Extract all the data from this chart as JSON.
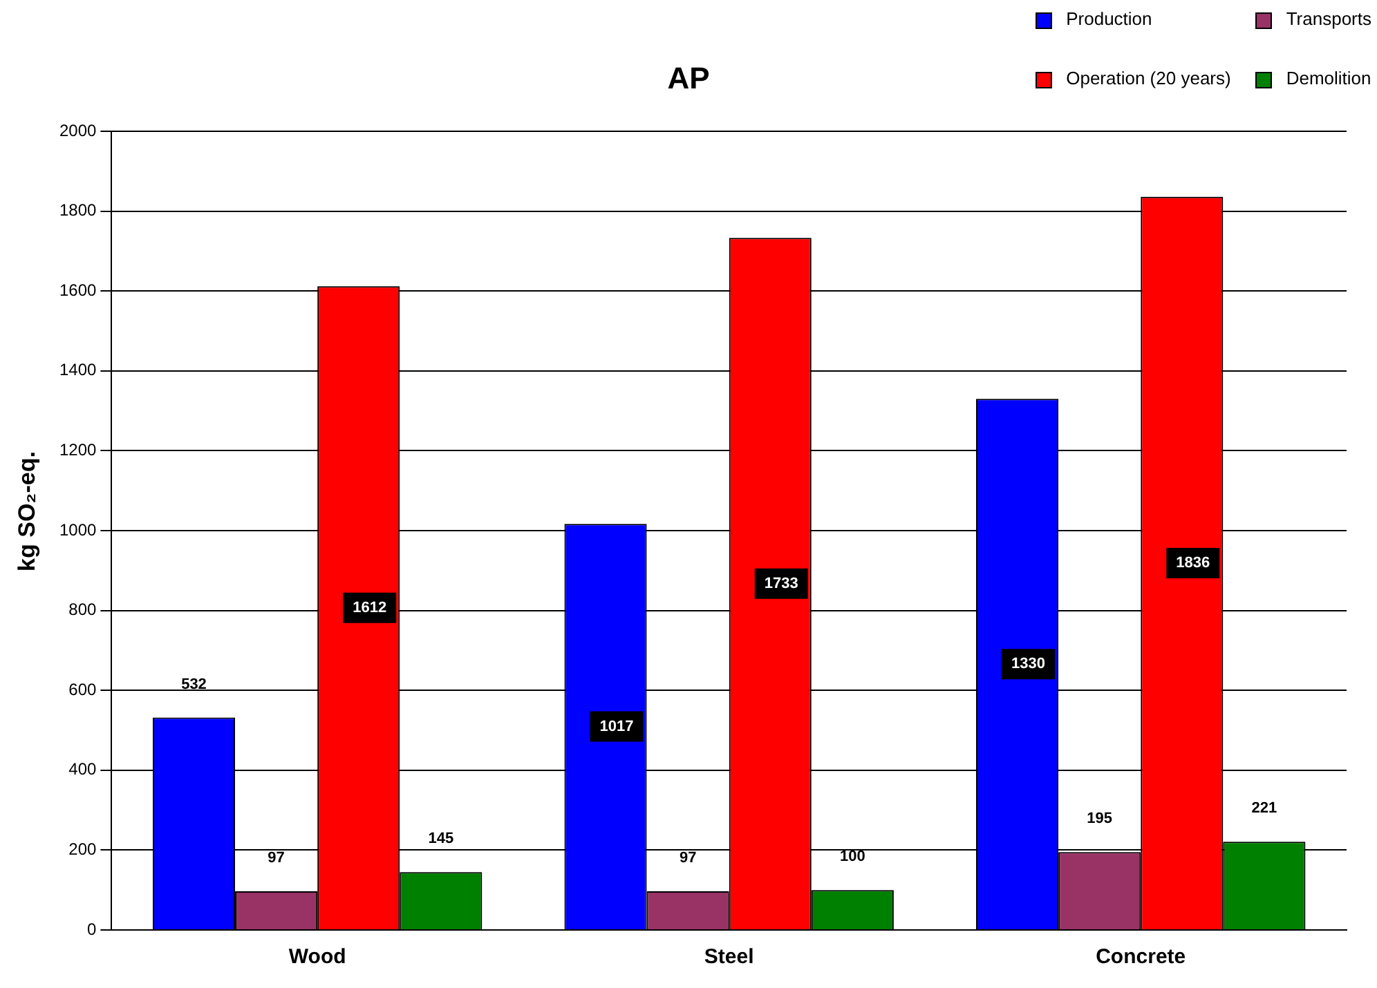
{
  "chart_data": {
    "type": "bar",
    "title": "AP",
    "ylabel": "kg SO₂-eq.",
    "categories": [
      "Wood",
      "Steel",
      "Concrete"
    ],
    "series": [
      {
        "name": "Production",
        "color": "#0000ff",
        "values": [
          532,
          1017,
          1330
        ]
      },
      {
        "name": "Transports",
        "color": "#993366",
        "values": [
          97,
          97,
          195
        ]
      },
      {
        "name": "Operation (20 years)",
        "color": "#ff0000",
        "values": [
          1612,
          1733,
          1836
        ]
      },
      {
        "name": "Demolition",
        "color": "#008000",
        "values": [
          145,
          100,
          221
        ]
      }
    ],
    "ylim": [
      0,
      2000
    ],
    "yticks": [
      0,
      200,
      400,
      600,
      800,
      1000,
      1200,
      1400,
      1600,
      1800,
      2000
    ],
    "grid": "y",
    "legend": "top right",
    "data_labels": true
  }
}
